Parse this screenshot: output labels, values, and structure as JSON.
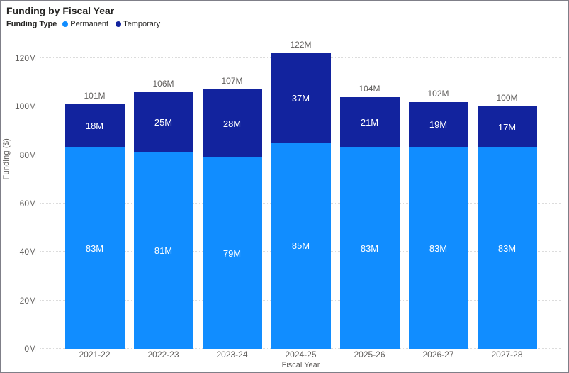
{
  "header": {
    "title": "Funding by Fiscal Year"
  },
  "legend": {
    "title": "Funding Type",
    "items": [
      {
        "label": "Permanent",
        "color": "#118DFF"
      },
      {
        "label": "Temporary",
        "color": "#12239E"
      }
    ]
  },
  "chart_data": {
    "type": "bar",
    "stacked": true,
    "title": "Funding by Fiscal Year",
    "xlabel": "Fiscal Year",
    "ylabel": "Funding ($)",
    "categories": [
      "2021-22",
      "2022-23",
      "2023-24",
      "2024-25",
      "2025-26",
      "2026-27",
      "2027-28"
    ],
    "series": [
      {
        "name": "Permanent",
        "color": "#118DFF",
        "values": [
          83,
          81,
          79,
          85,
          83,
          83,
          83
        ],
        "labels": [
          "83M",
          "81M",
          "79M",
          "85M",
          "83M",
          "83M",
          "83M"
        ]
      },
      {
        "name": "Temporary",
        "color": "#12239E",
        "values": [
          18,
          25,
          28,
          37,
          21,
          19,
          17
        ],
        "labels": [
          "18M",
          "25M",
          "28M",
          "37M",
          "21M",
          "19M",
          "17M"
        ]
      }
    ],
    "totals": [
      101,
      106,
      107,
      122,
      104,
      102,
      100
    ],
    "total_labels": [
      "101M",
      "106M",
      "107M",
      "122M",
      "104M",
      "102M",
      "100M"
    ],
    "ylim": [
      0,
      120
    ],
    "yticks": [
      0,
      20,
      40,
      60,
      80,
      100,
      120
    ],
    "ytick_labels": [
      "0M",
      "20M",
      "40M",
      "60M",
      "80M",
      "100M",
      "120M"
    ],
    "grid": "dotted horizontal",
    "legend_position": "top-left",
    "colors": {
      "permanent": "#118DFF",
      "temporary": "#12239E",
      "label_inside": "#FFFFFF",
      "label_muted": "#605E5C",
      "title_text": "#252423"
    }
  }
}
